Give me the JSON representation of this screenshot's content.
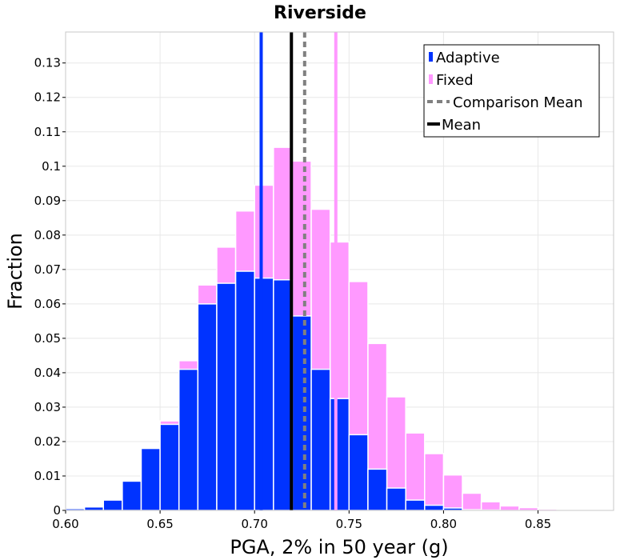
{
  "chart_data": {
    "type": "bar",
    "title": "Riverside",
    "xlabel": "PGA, 2% in 50 year (g)",
    "ylabel": "Fraction",
    "xlim": [
      0.6,
      0.89
    ],
    "ylim": [
      0,
      0.139
    ],
    "xticks": [
      "0.60",
      "0.65",
      "0.70",
      "0.75",
      "0.80",
      "0.85"
    ],
    "xtick_values": [
      0.6,
      0.65,
      0.7,
      0.75,
      0.8,
      0.85
    ],
    "yticks": [
      "0",
      "0.01",
      "0.02",
      "0.03",
      "0.04",
      "0.05",
      "0.06",
      "0.07",
      "0.08",
      "0.09",
      "0.1",
      "0.11",
      "0.12",
      "0.13"
    ],
    "ytick_values": [
      0,
      0.01,
      0.02,
      0.03,
      0.04,
      0.05,
      0.06,
      0.07,
      0.08,
      0.09,
      0.1,
      0.11,
      0.12,
      0.13
    ],
    "grid": true,
    "bin_width": 0.01,
    "bin_starts": [
      0.6,
      0.61,
      0.62,
      0.63,
      0.64,
      0.65,
      0.66,
      0.67,
      0.68,
      0.69,
      0.7,
      0.71,
      0.72,
      0.73,
      0.74,
      0.75,
      0.76,
      0.77,
      0.78,
      0.79,
      0.8,
      0.81,
      0.82,
      0.83,
      0.84,
      0.85,
      0.86,
      0.87,
      0.88
    ],
    "series": [
      {
        "name": "Fixed",
        "color": "#ff99ff",
        "values": [
          0.0005,
          0.001,
          0.003,
          0.0085,
          0.018,
          0.026,
          0.0435,
          0.0655,
          0.0765,
          0.087,
          0.0945,
          0.1055,
          0.1015,
          0.0875,
          0.078,
          0.0665,
          0.0485,
          0.033,
          0.0225,
          0.0165,
          0.0103,
          0.005,
          0.0025,
          0.0013,
          0.0008,
          0.0004,
          0.0002,
          0.0001,
          5e-05
        ]
      },
      {
        "name": "Adaptive",
        "color": "#0033ff",
        "values": [
          0.0005,
          0.001,
          0.003,
          0.0085,
          0.018,
          0.025,
          0.041,
          0.06,
          0.066,
          0.0695,
          0.0675,
          0.067,
          0.0565,
          0.041,
          0.0325,
          0.022,
          0.012,
          0.0065,
          0.003,
          0.0015,
          0.0007,
          0.0002,
          0.0001,
          0,
          0,
          0,
          0,
          0,
          0
        ]
      }
    ],
    "vlines": [
      {
        "name": "Mean",
        "x": 0.7195,
        "color": "#000000",
        "style": "solid"
      },
      {
        "name": "Comparison Mean",
        "x": 0.7265,
        "color": "#808080",
        "style": "dashed"
      },
      {
        "name": "Adaptive peak marker",
        "x": 0.7035,
        "color": "#0033ff",
        "style": "solid"
      },
      {
        "name": "Fixed peak marker",
        "x": 0.743,
        "color": "#ff99ff",
        "style": "solid"
      }
    ],
    "legend": {
      "placement": "top-right",
      "entries": [
        {
          "label": "Adaptive",
          "kind": "bar",
          "color": "#0033ff"
        },
        {
          "label": "Fixed",
          "kind": "bar",
          "color": "#ff99ff"
        },
        {
          "label": "Comparison Mean",
          "kind": "dashed-line",
          "color": "#808080"
        },
        {
          "label": "Mean",
          "kind": "line",
          "color": "#000000"
        }
      ]
    }
  }
}
